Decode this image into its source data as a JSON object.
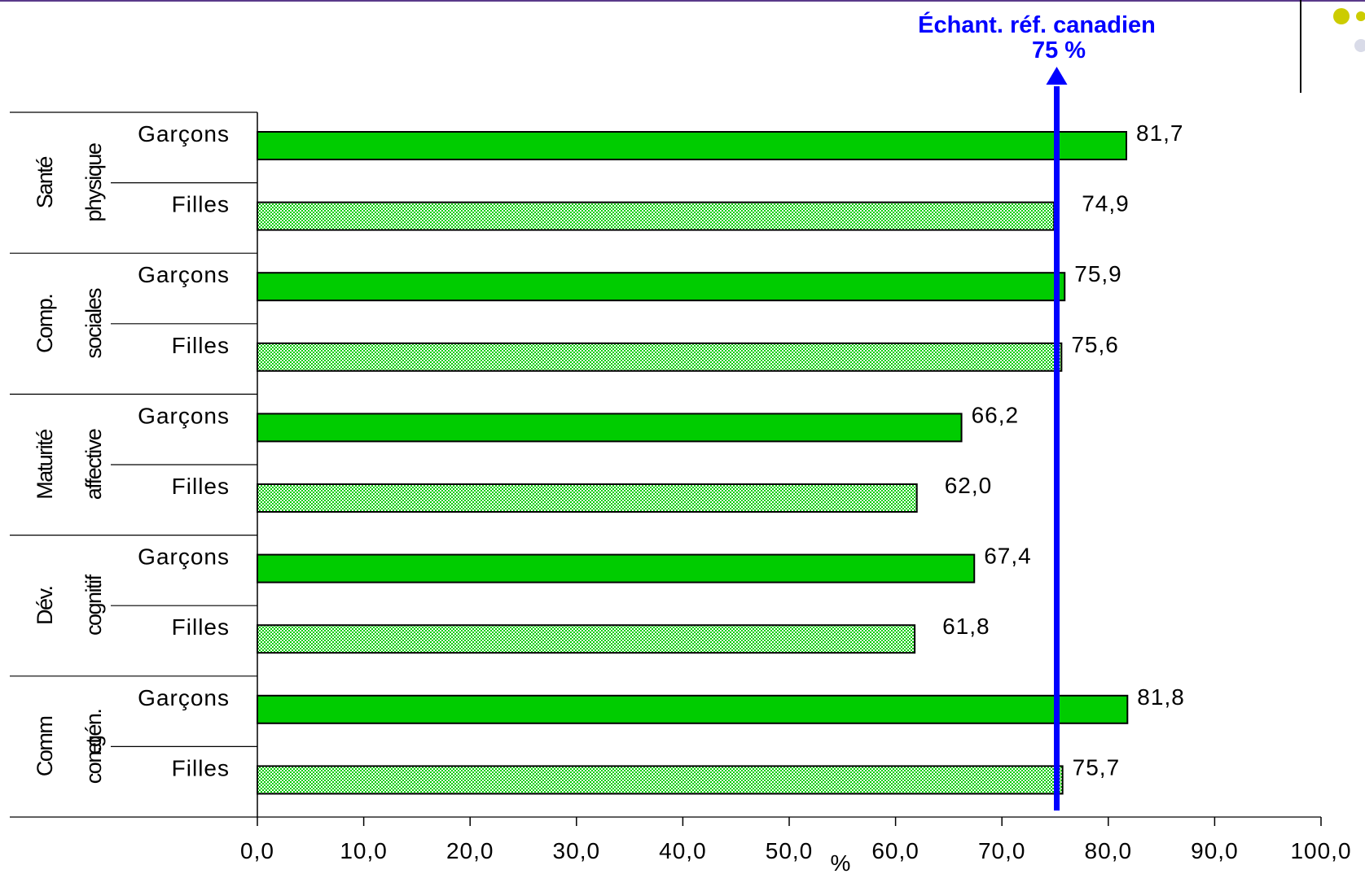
{
  "chart_data": {
    "type": "bar",
    "orientation": "horizontal",
    "xlabel": "%",
    "xlim": [
      0,
      100
    ],
    "x_ticks": [
      "0,0",
      "10,0",
      "20,0",
      "30,0",
      "40,0",
      "50,0",
      "60,0",
      "70,0",
      "80,0",
      "90,0",
      "100,0"
    ],
    "groups": [
      {
        "label": "Santé physique",
        "bars": [
          {
            "label": "Garçons",
            "value": 81.7,
            "value_label": "81,7",
            "pattern": "solid"
          },
          {
            "label": "Filles",
            "value": 74.9,
            "value_label": "74,9",
            "pattern": "dotted"
          }
        ]
      },
      {
        "label": "Comp. sociales",
        "bars": [
          {
            "label": "Garçons",
            "value": 75.9,
            "value_label": "75,9",
            "pattern": "solid"
          },
          {
            "label": "Filles",
            "value": 75.6,
            "value_label": "75,6",
            "pattern": "dotted"
          }
        ]
      },
      {
        "label": "Maturité affective",
        "bars": [
          {
            "label": "Garçons",
            "value": 66.2,
            "value_label": "66,2",
            "pattern": "solid"
          },
          {
            "label": "Filles",
            "value": 62.0,
            "value_label": "62,0",
            "pattern": "dotted"
          }
        ]
      },
      {
        "label": "Dév. cognitif",
        "bars": [
          {
            "label": "Garçons",
            "value": 67.4,
            "value_label": "67,4",
            "pattern": "solid"
          },
          {
            "label": "Filles",
            "value": 61.8,
            "value_label": "61,8",
            "pattern": "dotted"
          }
        ]
      },
      {
        "label": "Comm et con.gén.",
        "bars": [
          {
            "label": "Garçons",
            "value": 81.8,
            "value_label": "81,8",
            "pattern": "solid"
          },
          {
            "label": "Filles",
            "value": 75.7,
            "value_label": "75,7",
            "pattern": "dotted"
          }
        ]
      }
    ],
    "reference_line": {
      "value": 75,
      "label": "Échant. réf. canadien",
      "value_label": "75 %",
      "color": "#0000ff"
    },
    "bar_color": "#00cc00",
    "grid": false,
    "legend": "none"
  }
}
